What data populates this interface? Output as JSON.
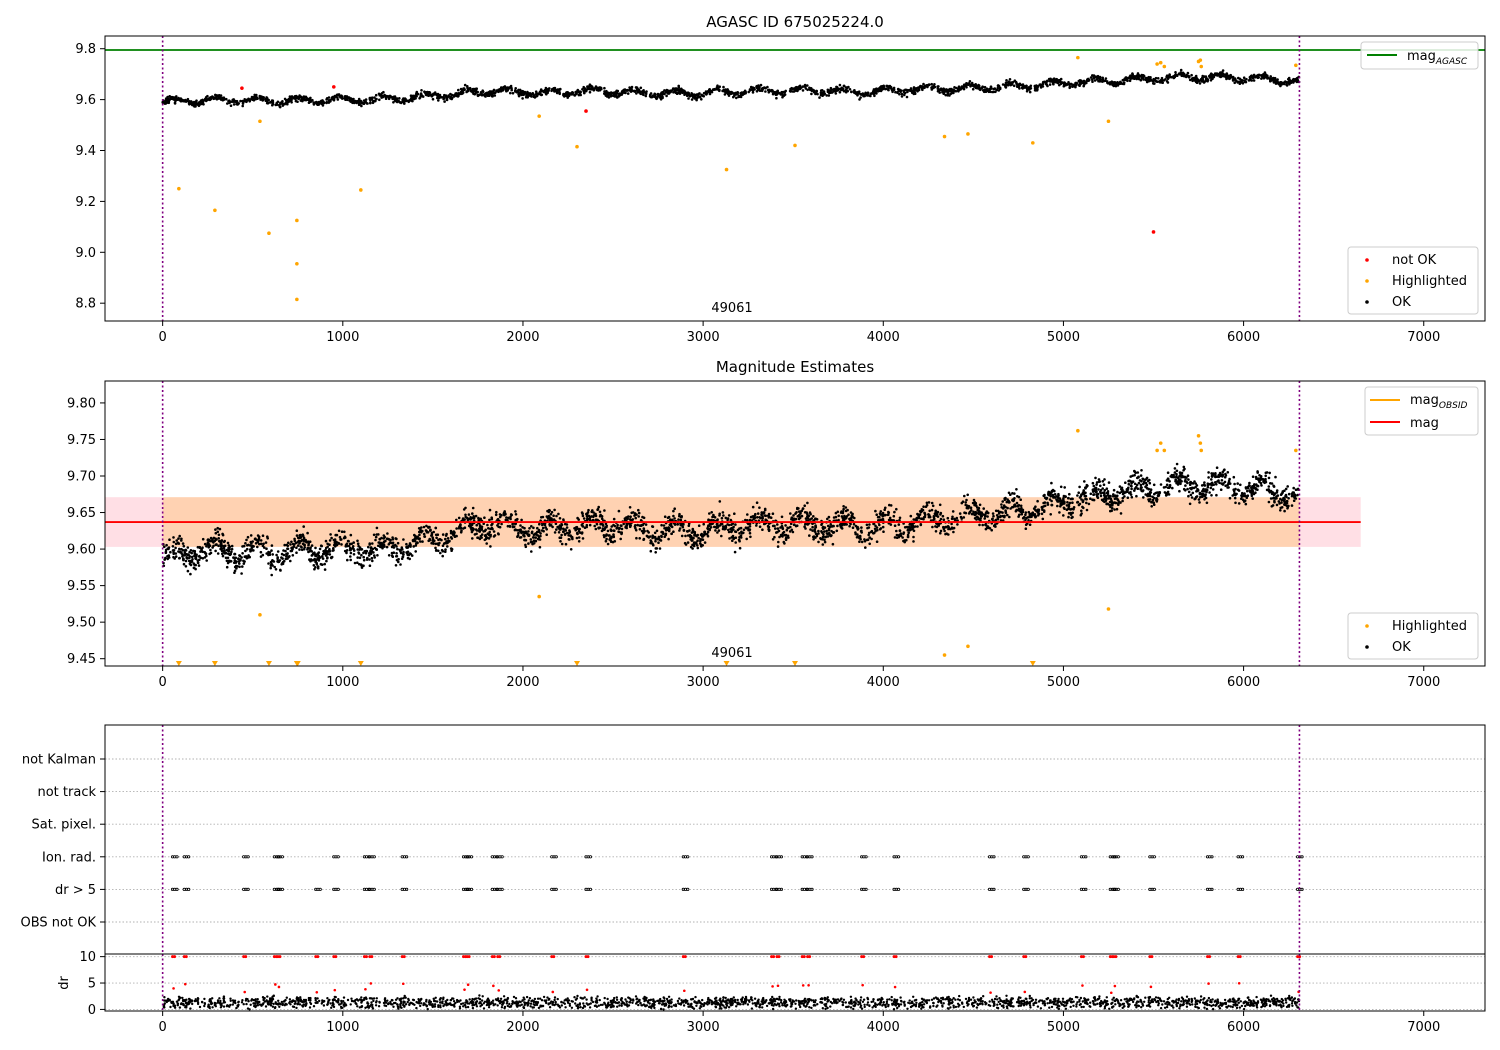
{
  "chart_data": [
    {
      "id": "top",
      "type": "scatter",
      "title": "AGASC ID 675025224.0",
      "xlim": [
        -320,
        7340
      ],
      "ylim": [
        8.73,
        9.85
      ],
      "xticks": [
        "0",
        "1000",
        "2000",
        "3000",
        "4000",
        "5000",
        "6000",
        "7000"
      ],
      "yticks": [
        "8.8",
        "9.0",
        "9.2",
        "9.4",
        "9.6",
        "9.8"
      ],
      "vlines": [
        0,
        6310
      ],
      "annotation": {
        "x": 3160,
        "y": 8.78,
        "text": "49061"
      },
      "hlines": [
        {
          "name": "mag_AGASC",
          "y": 9.795,
          "color": "#008000"
        }
      ],
      "legend_upper": {
        "position": "upper right",
        "entries": [
          {
            "label": "mag",
            "sub": "AGASC",
            "color": "#008000"
          }
        ]
      },
      "legend_lower": {
        "position": "lower right",
        "entries": [
          {
            "label": "not OK",
            "color": "#ff0000"
          },
          {
            "label": "Highlighted",
            "color": "#ffa500"
          },
          {
            "label": "OK",
            "color": "#000000"
          }
        ]
      },
      "baseline_trend": {
        "name": "OK",
        "color": "#000000",
        "x": [
          0,
          300,
          600,
          900,
          1200,
          1500,
          1800,
          2100,
          2400,
          2700,
          3000,
          3300,
          3600,
          3900,
          4200,
          4500,
          4800,
          5100,
          5400,
          5700,
          6000,
          6300
        ],
        "y": [
          9.59,
          9.6,
          9.595,
          9.6,
          9.6,
          9.615,
          9.635,
          9.625,
          9.635,
          9.625,
          9.625,
          9.635,
          9.635,
          9.63,
          9.64,
          9.645,
          9.655,
          9.67,
          9.68,
          9.69,
          9.685,
          9.675
        ]
      },
      "highlighted": [
        {
          "x": 90,
          "y": 9.25
        },
        {
          "x": 290,
          "y": 9.165
        },
        {
          "x": 540,
          "y": 9.515
        },
        {
          "x": 590,
          "y": 9.075
        },
        {
          "x": 745,
          "y": 9.125
        },
        {
          "x": 745,
          "y": 8.955
        },
        {
          "x": 745,
          "y": 8.815
        },
        {
          "x": 1100,
          "y": 9.245
        },
        {
          "x": 2090,
          "y": 9.535
        },
        {
          "x": 2300,
          "y": 9.415
        },
        {
          "x": 3130,
          "y": 9.325
        },
        {
          "x": 3510,
          "y": 9.42
        },
        {
          "x": 4340,
          "y": 9.455
        },
        {
          "x": 4470,
          "y": 9.465
        },
        {
          "x": 4830,
          "y": 9.43
        },
        {
          "x": 5080,
          "y": 9.765
        },
        {
          "x": 5250,
          "y": 9.515
        },
        {
          "x": 5520,
          "y": 9.74
        },
        {
          "x": 5540,
          "y": 9.745
        },
        {
          "x": 5560,
          "y": 9.73
        },
        {
          "x": 5750,
          "y": 9.75
        },
        {
          "x": 5760,
          "y": 9.755
        },
        {
          "x": 5765,
          "y": 9.73
        },
        {
          "x": 6290,
          "y": 9.735
        }
      ],
      "not_ok": [
        {
          "x": 440,
          "y": 9.645
        },
        {
          "x": 950,
          "y": 9.65
        },
        {
          "x": 2350,
          "y": 9.555
        },
        {
          "x": 5500,
          "y": 9.08
        }
      ]
    },
    {
      "id": "middle",
      "type": "scatter",
      "title": "Magnitude Estimates",
      "xlim": [
        -320,
        7340
      ],
      "ylim": [
        9.44,
        9.83
      ],
      "xticks": [
        "0",
        "1000",
        "2000",
        "3000",
        "4000",
        "5000",
        "6000",
        "7000"
      ],
      "yticks": [
        "9.45",
        "9.50",
        "9.55",
        "9.60",
        "9.65",
        "9.70",
        "9.75",
        "9.80"
      ],
      "vlines": [
        0,
        6310
      ],
      "annotation": {
        "x": 3160,
        "y": 9.452,
        "text": "49061"
      },
      "mag_line": {
        "name": "mag",
        "y": 9.637,
        "x0": -320,
        "x1": 6650,
        "color": "#ff0000"
      },
      "band_outer": {
        "y0": 9.603,
        "y1": 9.671,
        "x0": -320,
        "x1": 6650,
        "color": "#ffc0cb"
      },
      "band_inner": {
        "y0": 9.603,
        "y1": 9.671,
        "x0": 0,
        "x1": 6310,
        "color": "#ffa500"
      },
      "legend_upper": {
        "position": "upper right",
        "entries": [
          {
            "label": "mag",
            "sub": "OBSID",
            "color": "#ffa500"
          },
          {
            "label": "mag",
            "sub": "",
            "color": "#ff0000"
          }
        ]
      },
      "legend_lower": {
        "position": "lower right",
        "entries": [
          {
            "label": "Highlighted",
            "color": "#ffa500"
          },
          {
            "label": "OK",
            "color": "#000000"
          }
        ]
      },
      "highlighted": [
        {
          "x": 540,
          "y": 9.51
        },
        {
          "x": 2090,
          "y": 9.535
        },
        {
          "x": 4340,
          "y": 9.455
        },
        {
          "x": 4470,
          "y": 9.467
        },
        {
          "x": 5080,
          "y": 9.762
        },
        {
          "x": 5250,
          "y": 9.518
        },
        {
          "x": 5520,
          "y": 9.735
        },
        {
          "x": 5540,
          "y": 9.745
        },
        {
          "x": 5560,
          "y": 9.735
        },
        {
          "x": 5750,
          "y": 9.755
        },
        {
          "x": 5760,
          "y": 9.745
        },
        {
          "x": 5765,
          "y": 9.735
        },
        {
          "x": 6290,
          "y": 9.735
        }
      ],
      "lower_limits": [
        90,
        290,
        590,
        745,
        750,
        1100,
        2300,
        3130,
        3510,
        4830
      ]
    },
    {
      "id": "flags",
      "type": "scatter",
      "xlim": [
        -320,
        7340
      ],
      "categories": [
        "not Kalman",
        "not track",
        "Sat. pixel.",
        "Ion. rad.",
        "dr > 5",
        "OBS not OK"
      ],
      "vlines": [
        0,
        6310
      ],
      "ion_rad_x": [
        55,
        120,
        450,
        620,
        640,
        950,
        1120,
        1150,
        1330,
        1670,
        1690,
        1830,
        1860,
        2160,
        2350,
        2890,
        3380,
        3410,
        3550,
        3580,
        3880,
        4060,
        4590,
        4780,
        5100,
        5260,
        5280,
        5480,
        5800,
        5970,
        6300
      ],
      "dr5_x": [
        55,
        120,
        450,
        620,
        640,
        850,
        950,
        1120,
        1150,
        1330,
        1670,
        1690,
        1830,
        1860,
        2160,
        2350,
        2890,
        3380,
        3410,
        3550,
        3580,
        3880,
        4060,
        4590,
        4780,
        5100,
        5260,
        5280,
        5480,
        5800,
        5970,
        6300
      ]
    },
    {
      "id": "dr",
      "type": "scatter",
      "ylabel": "dr",
      "xlim": [
        -320,
        7340
      ],
      "ylim": [
        -0.3,
        10.5
      ],
      "xticks": [
        "0",
        "1000",
        "2000",
        "3000",
        "4000",
        "5000",
        "6000",
        "7000"
      ],
      "yticks": [
        "0",
        "5",
        "10"
      ],
      "vlines": [
        0,
        6310
      ],
      "large_x": [
        55,
        120,
        450,
        620,
        640,
        850,
        950,
        1120,
        1150,
        1330,
        1670,
        1690,
        1830,
        1860,
        2160,
        2350,
        2890,
        3380,
        3410,
        3550,
        3580,
        3880,
        4060,
        4590,
        4780,
        5100,
        5260,
        5280,
        5480,
        5800,
        5970,
        6300
      ]
    }
  ]
}
